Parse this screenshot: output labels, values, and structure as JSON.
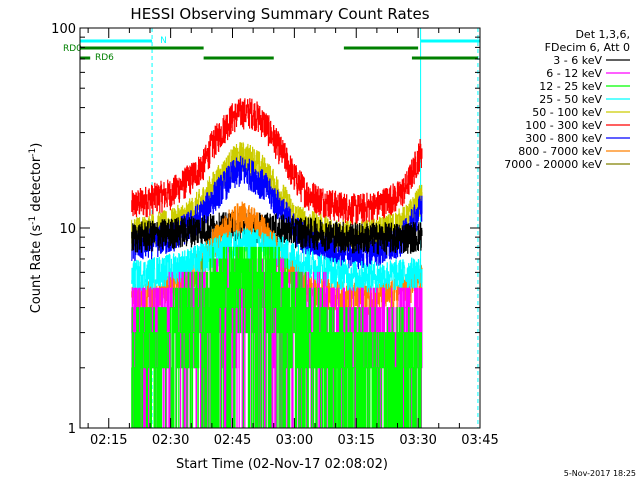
{
  "chart_data": {
    "type": "line",
    "title": "HESSI Observing Summary Count Rates",
    "xlabel": "Start Time (02-Nov-17 02:08:02)",
    "ylabel": "Count Rate (s⁻¹ detector⁻¹)",
    "ylabel_main": "Count Rate (s",
    "ylabel_sup1": "-1",
    "ylabel_mid": " detector",
    "ylabel_sup2": "-1",
    "ylabel_end": ")",
    "y_scale": "log",
    "ylim": [
      1,
      100
    ],
    "y_ticks": [
      {
        "value": 1,
        "label": "1"
      },
      {
        "value": 10,
        "label": "10"
      },
      {
        "value": 100,
        "label": "100"
      }
    ],
    "xlim_minutes": [
      128.03,
      225.0
    ],
    "x_ticks": [
      {
        "minutes": 135,
        "label": "02:15"
      },
      {
        "minutes": 150,
        "label": "02:30"
      },
      {
        "minutes": 165,
        "label": "02:45"
      },
      {
        "minutes": 180,
        "label": "03:00"
      },
      {
        "minutes": 195,
        "label": "03:15"
      },
      {
        "minutes": 210,
        "label": "03:30"
      },
      {
        "minutes": 225,
        "label": "03:45"
      }
    ],
    "legend": {
      "placement": "right",
      "header": [
        "Det 1,3,6,",
        "FDecim 6, Att 0"
      ],
      "entries": [
        {
          "label": "3 - 6 keV",
          "color": "#000000"
        },
        {
          "label": "6 - 12 keV",
          "color": "#ff00ff"
        },
        {
          "label": "12 - 25 keV",
          "color": "#00ff00"
        },
        {
          "label": "25 - 50 keV",
          "color": "#00ffff"
        },
        {
          "label": "50 - 100 keV",
          "color": "#cccc00"
        },
        {
          "label": "100 - 300 keV",
          "color": "#ff0000"
        },
        {
          "label": "300 - 800 keV",
          "color": "#0000ff"
        },
        {
          "label": "800 - 7000 keV",
          "color": "#ff8000"
        },
        {
          "label": "7000 - 20000 keV",
          "color": "#808000"
        }
      ]
    },
    "flags": {
      "N": {
        "label": "N",
        "color": "#00ffff",
        "value": 90,
        "segments": [
          [
            128.03,
            145.5
          ],
          [
            210.6,
            225.0
          ]
        ]
      },
      "RD0": {
        "label": "RD0",
        "color": "#008000",
        "value": 80,
        "segments": [
          [
            128.03,
            158
          ],
          [
            192,
            210
          ]
        ]
      },
      "RD6": {
        "label": "RD6",
        "color": "#008000",
        "value": 70,
        "segments": [
          [
            128.03,
            130.5
          ],
          [
            158,
            175
          ],
          [
            208.5,
            224.5
          ]
        ]
      }
    },
    "vertical_lines": {
      "solid_minutes": [
        128.03,
        210.6
      ],
      "dashed_minutes": [
        145.5,
        224.5
      ],
      "color": "#00ffff"
    },
    "data_window_minutes": [
      140.5,
      211.0
    ],
    "series": [
      {
        "name": "100 - 300 keV",
        "color": "#ff0000",
        "x": [
          140.5,
          145,
          150,
          155,
          158,
          160,
          163,
          165,
          167,
          170,
          173,
          175,
          178,
          180,
          183,
          186,
          190,
          195,
          200,
          203,
          205,
          207,
          209,
          210.5
        ],
        "y": [
          13,
          14,
          15,
          18,
          21,
          26,
          32,
          36,
          38,
          38,
          33,
          28,
          22,
          18,
          15,
          14,
          13,
          12.5,
          13,
          14,
          14.5,
          16,
          20,
          24
        ]
      },
      {
        "name": "50 - 100 keV",
        "color": "#cccc00",
        "x": [
          140.5,
          145,
          150,
          155,
          158,
          160,
          163,
          165,
          167,
          170,
          173,
          175,
          178,
          180,
          183,
          186,
          190,
          195,
          200,
          203,
          205,
          207,
          209,
          210.5
        ],
        "y": [
          9.5,
          10,
          10.5,
          12,
          14,
          16,
          19,
          21.5,
          23,
          22,
          19,
          16.5,
          13.5,
          11.5,
          10.5,
          10,
          9.5,
          9,
          9.5,
          10,
          10.5,
          11,
          12.5,
          14
        ]
      },
      {
        "name": "300 - 800 keV",
        "color": "#0000ff",
        "x": [
          140.5,
          145,
          150,
          155,
          158,
          160,
          163,
          165,
          167,
          170,
          173,
          175,
          178,
          180,
          183,
          186,
          190,
          195,
          200,
          203,
          205,
          207,
          209,
          210.5
        ],
        "y": [
          8,
          8.5,
          9,
          10.5,
          12,
          14,
          16.5,
          18.5,
          19.5,
          18.5,
          16,
          14,
          11.5,
          10,
          8.8,
          8.2,
          7.8,
          7.5,
          7.8,
          8,
          8.5,
          9.5,
          11,
          12.5
        ]
      },
      {
        "name": "3 - 6 keV",
        "color": "#000000",
        "x": [
          140.5,
          145,
          150,
          155,
          160,
          165,
          170,
          175,
          180,
          185,
          190,
          195,
          200,
          205,
          210.5
        ],
        "y": [
          9,
          9.2,
          9.5,
          9.8,
          10,
          10.2,
          10.2,
          10,
          9.7,
          9.5,
          9.2,
          9,
          9,
          9,
          9.2
        ]
      },
      {
        "name": "800 - 7000 keV",
        "color": "#ff8000",
        "x": [
          140.5,
          145,
          150,
          155,
          158,
          160,
          163,
          165,
          167,
          170,
          173,
          175,
          178,
          180,
          183,
          186,
          190,
          195,
          200,
          203,
          205,
          207,
          209,
          210.5
        ],
        "y": [
          4.5,
          4.6,
          5,
          6,
          7,
          8.3,
          9.8,
          11,
          11.5,
          11,
          9.5,
          8.2,
          6.8,
          5.8,
          5,
          4.8,
          4.6,
          4.5,
          4.5,
          4.6,
          4.8,
          5,
          5.2,
          5.5
        ]
      },
      {
        "name": "25 - 50 keV",
        "color": "#00ffff",
        "x": [
          140.5,
          145,
          150,
          155,
          160,
          165,
          170,
          175,
          180,
          185,
          190,
          195,
          200,
          205,
          210.5
        ],
        "y": [
          5.8,
          6,
          6.3,
          6.8,
          7.5,
          8.3,
          8.5,
          8,
          7.2,
          6.5,
          6,
          5.8,
          5.8,
          5.9,
          6.1
        ]
      },
      {
        "name": "6 - 12 keV",
        "color": "#ff00ff",
        "x": [
          140.5,
          145,
          150,
          155,
          160,
          165,
          170,
          175,
          180,
          185,
          190,
          195,
          200,
          205,
          210.5
        ],
        "y": [
          3.2,
          3.4,
          3.7,
          4,
          4.5,
          5,
          5.2,
          4.8,
          4.3,
          3.8,
          3.5,
          3.3,
          3.2,
          3.3,
          3.5
        ]
      },
      {
        "name": "12 - 25 keV",
        "color": "#00ff00",
        "x": [
          140.5,
          145,
          150,
          155,
          160,
          165,
          170,
          175,
          180,
          185,
          190,
          195,
          200,
          205,
          210.5
        ],
        "y": [
          2.5,
          2.8,
          3.2,
          4,
          5,
          6.3,
          6.8,
          5.8,
          4.2,
          3.2,
          2.7,
          2.5,
          2.4,
          2.5,
          2.6
        ]
      }
    ]
  },
  "footer_date": "5-Nov-2017 18:25"
}
